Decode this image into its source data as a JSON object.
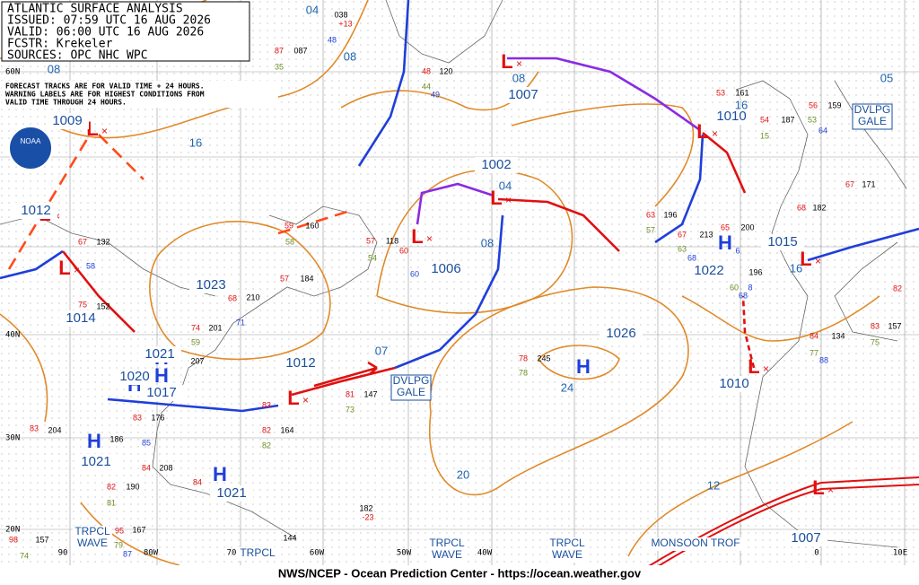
{
  "header": {
    "lines": [
      "ATLANTIC SURFACE ANALYSIS",
      "ISSUED: 07:59 UTC 16 AUG 2026",
      "VALID: 06:00 UTC 16 AUG 2026",
      "FCSTR: Krekeler",
      "SOURCES: OPC NHC WPC"
    ]
  },
  "note": {
    "lines": [
      "FORECAST TRACKS ARE FOR VALID TIME + 24 HOURS.",
      "WARNING LABELS ARE FOR HIGHEST CONDITIONS FROM",
      "VALID TIME THROUGH 24 HOURS."
    ]
  },
  "logo": "NOAA",
  "footer": "NWS/NCEP - Ocean Prediction Center - https://ocean.weather.gov",
  "lat_labels": [
    "60N",
    "40N",
    "30N",
    "20N"
  ],
  "lon_labels": [
    "90",
    "80W",
    "70",
    "60W",
    "50W",
    "40W",
    "0",
    "10E"
  ],
  "centers": [
    {
      "letter": "L",
      "pressure": "1007"
    },
    {
      "letter": "L",
      "pressure": "1002"
    },
    {
      "letter": "L",
      "pressure": "1006"
    },
    {
      "letter": "L",
      "pressure": "1012"
    },
    {
      "letter": "L",
      "pressure": "1009"
    },
    {
      "letter": "L",
      "pressure": "1010"
    },
    {
      "letter": "L",
      "pressure": "1015"
    },
    {
      "letter": "L",
      "pressure": "1010"
    },
    {
      "letter": "L",
      "pressure": "1007"
    },
    {
      "letter": "L",
      "pressure": "1014"
    },
    {
      "letter": "H",
      "pressure": "1023"
    },
    {
      "letter": "H",
      "pressure": "1026"
    },
    {
      "letter": "H",
      "pressure": "1022"
    },
    {
      "letter": "H",
      "pressure": "1021"
    },
    {
      "letter": "H",
      "pressure": "1021"
    },
    {
      "letter": "H",
      "pressure": "1020"
    },
    {
      "letter": "H",
      "pressure": "1017"
    },
    {
      "letter": "H",
      "pressure": "1021"
    },
    {
      "letter": "L",
      "pressure": "1012"
    }
  ],
  "isobar_labels": [
    "08",
    "16",
    "08",
    "04",
    "08",
    "04",
    "08",
    "07",
    "24",
    "20",
    "12",
    "16",
    "05",
    "16"
  ],
  "features": [
    {
      "lines": [
        "DVLPG",
        "GALE"
      ]
    },
    {
      "lines": [
        "DVLPG",
        "GALE"
      ]
    },
    {
      "lines": [
        "TRPCL",
        "WAVE"
      ]
    },
    {
      "lines": [
        "TRPCL",
        "WAVE"
      ]
    },
    {
      "lines": [
        "TRPCL",
        "WAVE"
      ]
    },
    {
      "lines": [
        "TRPCL"
      ]
    },
    {
      "lines": [
        "MONSOON TROF"
      ]
    }
  ],
  "stations": [
    "038",
    "+13",
    "48",
    "87",
    "087",
    "35",
    "48",
    "120",
    "44",
    "49",
    "53",
    "161",
    "54",
    "187",
    "56",
    "159",
    "53",
    "64",
    "15",
    "67",
    "171",
    "68",
    "182",
    "63",
    "196",
    "57",
    "213",
    "65",
    "200",
    "67",
    "63",
    "68",
    "6",
    "196",
    "60",
    "8",
    "68",
    "82",
    "83",
    "157",
    "75",
    "84",
    "134",
    "88",
    "77",
    "59",
    "160",
    "58",
    "57",
    "118",
    "60",
    "54",
    "60",
    "57",
    "184",
    "68",
    "210",
    "71",
    "74",
    "201",
    "59",
    "207",
    "67",
    "132",
    "58",
    "75",
    "152",
    "78",
    "245",
    "78",
    "81",
    "147",
    "73",
    "83",
    "164",
    "82",
    "82",
    "83",
    "176",
    "83",
    "204",
    "186",
    "85",
    "84",
    "208",
    "82",
    "190",
    "81",
    "84",
    "182",
    "-23",
    "144",
    "167",
    "157",
    "74",
    "87",
    "79",
    "95",
    "98"
  ]
}
